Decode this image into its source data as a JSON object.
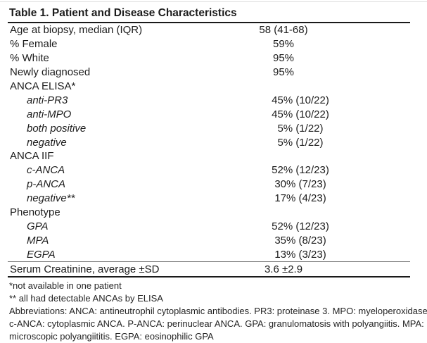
{
  "title": "Table 1. Patient and Disease Characteristics",
  "table": {
    "rows": [
      {
        "label": "Age at biopsy, median (IQR)",
        "value": "58 (41-68)"
      },
      {
        "label": "% Female",
        "value": "59%"
      },
      {
        "label": "% White",
        "value": "95%"
      },
      {
        "label": "Newly diagnosed",
        "value": "95%"
      },
      {
        "label": "ANCA ELISA*",
        "value": ""
      },
      {
        "label": "anti-PR3",
        "value": "45% (10/22)"
      },
      {
        "label": "anti-MPO",
        "value": "45% (10/22)"
      },
      {
        "label": "both positive",
        "value": "5% (1/22)"
      },
      {
        "label": "negative",
        "value": "5% (1/22)"
      },
      {
        "label": "ANCA IIF",
        "value": ""
      },
      {
        "label": "c-ANCA",
        "value": "52% (12/23)"
      },
      {
        "label": "p-ANCA",
        "value": "30% (7/23)"
      },
      {
        "label": "negative**",
        "value": "17% (4/23)"
      },
      {
        "label": "Phenotype",
        "value": ""
      },
      {
        "label": "GPA",
        "value": "52% (12/23)"
      },
      {
        "label": "MPA",
        "value": "35% (8/23)"
      },
      {
        "label": "EGPA",
        "value": "13% (3/23)"
      },
      {
        "label": "Serum Creatinine, average ±SD",
        "value": "3.6 ±2.9"
      }
    ]
  },
  "footnotes": {
    "note1": "*not available in one patient",
    "note2": "** all had detectable ANCAs by ELISA",
    "abbr_line1": "Abbreviations: ANCA: antineutrophil cytoplasmic antibodies. PR3: proteinase 3. MPO: myeloperoxidase.",
    "abbr_line2": "c-ANCA: cytoplasmic ANCA. P-ANCA: perinuclear ANCA. GPA: granulomatosis with polyangiitis. MPA:",
    "abbr_line3": "microscopic polyangiititis. EGPA: eosinophilic GPA"
  }
}
